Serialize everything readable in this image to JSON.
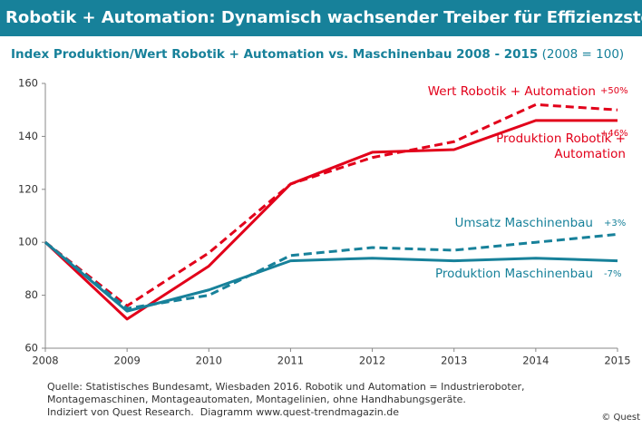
{
  "chart_data": {
    "type": "line",
    "title": "Robotik + Automation: Dynamisch wachsender Treiber für Effizienzsteigerung",
    "subtitle": "Index Produktion/Wert Robotik + Automation vs. Maschinenbau 2008 - 2015",
    "subtitle_note": "(2008 = 100)",
    "x": [
      2008,
      2009,
      2010,
      2011,
      2012,
      2013,
      2014,
      2015
    ],
    "xlim": [
      2008,
      2015
    ],
    "xticks": [
      2008,
      2009,
      2010,
      2011,
      2012,
      2013,
      2014,
      2015
    ],
    "ylim": [
      60,
      160
    ],
    "yticks": [
      60,
      80,
      100,
      120,
      140,
      160
    ],
    "series": [
      {
        "name": "Wert Robotik + Automation",
        "annotation": "+50%",
        "color": "#e2001a",
        "dashed": true,
        "values": [
          100,
          76,
          96,
          122,
          132,
          138,
          152,
          150
        ]
      },
      {
        "name": "Produktion Robotik + Automation",
        "annotation": "+46%",
        "color": "#e2001a",
        "dashed": false,
        "values": [
          100,
          71,
          91,
          122,
          134,
          135,
          146,
          146
        ]
      },
      {
        "name": "Umsatz Maschinenbau",
        "annotation": "+3%",
        "color": "#17819a",
        "dashed": true,
        "values": [
          100,
          75,
          80,
          95,
          98,
          97,
          100,
          103
        ]
      },
      {
        "name": "Produktion Maschinenbau",
        "annotation": "-7%",
        "color": "#17819a",
        "dashed": false,
        "values": [
          100,
          74,
          82,
          93,
          94,
          93,
          94,
          93
        ]
      }
    ],
    "source": [
      "Quelle: Statistisches Bundesamt, Wiesbaden 2016. Robotik und Automation = Industrieroboter,",
      "Montagemaschinen, Montageautomaten, Montagelinien, ohne Handhabungsgeräte.",
      "Indiziert von Quest Research.  Diagramm www.quest-trendmagazin.de"
    ],
    "copyright": "© Quest"
  }
}
